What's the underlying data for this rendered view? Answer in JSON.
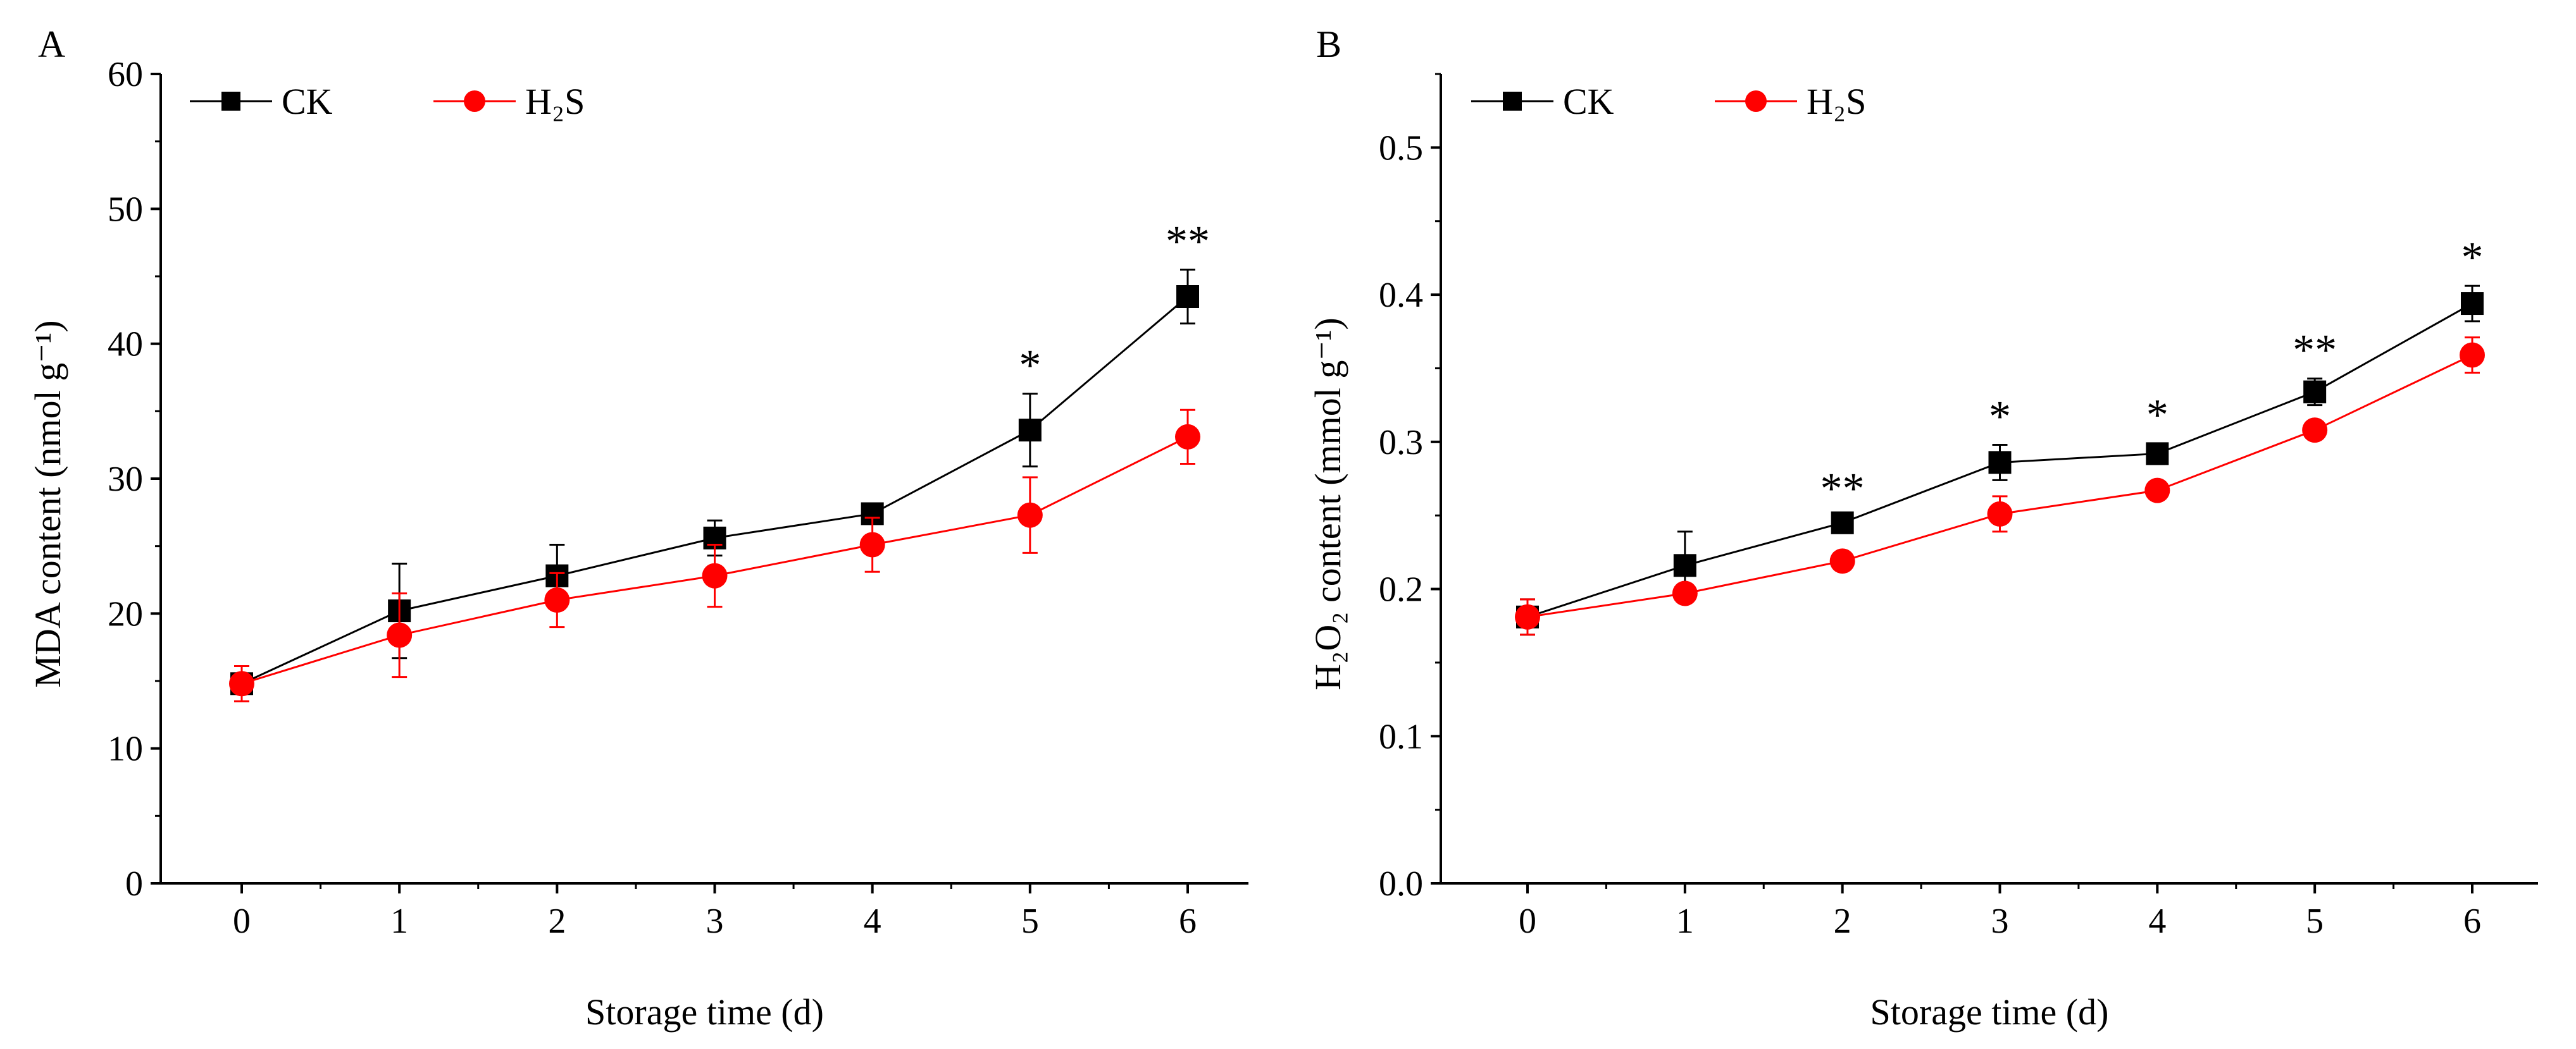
{
  "chart_data": [
    {
      "panel": "A",
      "type": "line",
      "xlabel": "Storage time (d)",
      "ylabel": "MDA content (nmol g⁻¹)",
      "x": [
        0,
        1,
        2,
        3,
        4,
        5,
        6
      ],
      "xlim": [
        -0.5,
        6.35
      ],
      "ylim": [
        0,
        60
      ],
      "yticks": [
        0,
        10,
        20,
        30,
        40,
        50,
        60
      ],
      "ytick_labels": [
        "0",
        "10",
        "20",
        "30",
        "40",
        "50",
        "60"
      ],
      "legend_position": "top-left",
      "series": [
        {
          "name": "CK",
          "color": "#000000",
          "marker": "square",
          "values": [
            14.8,
            20.2,
            22.8,
            25.6,
            27.4,
            33.6,
            43.5
          ],
          "errors": [
            1.3,
            3.5,
            2.3,
            1.3,
            0.5,
            2.7,
            2.0
          ]
        },
        {
          "name": "H₂S",
          "color": "#ff0000",
          "marker": "circle",
          "values": [
            14.8,
            18.4,
            21.0,
            22.8,
            25.1,
            27.3,
            33.1
          ],
          "errors": [
            1.3,
            3.1,
            2.0,
            2.3,
            2.0,
            2.8,
            2.0
          ]
        }
      ],
      "annotations": [
        {
          "x": 5,
          "text": "*"
        },
        {
          "x": 6,
          "text": "**"
        }
      ]
    },
    {
      "panel": "B",
      "type": "line",
      "xlabel": "Storage time (d)",
      "ylabel": "H₂O₂ content (mmol g⁻¹)",
      "x": [
        0,
        1,
        2,
        3,
        4,
        5,
        6
      ],
      "xlim": [
        -0.5,
        6.4
      ],
      "ylim": [
        0,
        0.55
      ],
      "yticks": [
        0,
        0.1,
        0.2,
        0.3,
        0.4,
        0.5
      ],
      "ytick_labels": [
        "0.0",
        "0.1",
        "0.2",
        "0.3",
        "0.4",
        "0.5"
      ],
      "legend_position": "top-left",
      "series": [
        {
          "name": "CK",
          "color": "#000000",
          "marker": "square",
          "values": [
            0.181,
            0.216,
            0.245,
            0.286,
            0.292,
            0.334,
            0.394
          ],
          "errors": [
            0.012,
            0.023,
            0.004,
            0.012,
            0.007,
            0.009,
            0.012
          ]
        },
        {
          "name": "H₂S",
          "color": "#ff0000",
          "marker": "circle",
          "values": [
            0.181,
            0.197,
            0.219,
            0.251,
            0.267,
            0.308,
            0.359
          ],
          "errors": [
            0.012,
            0.004,
            0.004,
            0.012,
            0.004,
            0.004,
            0.012
          ]
        }
      ],
      "annotations": [
        {
          "x": 2,
          "text": "**"
        },
        {
          "x": 3,
          "text": "*"
        },
        {
          "x": 4,
          "text": "*"
        },
        {
          "x": 5,
          "text": "**"
        },
        {
          "x": 6,
          "text": "*"
        }
      ]
    }
  ]
}
